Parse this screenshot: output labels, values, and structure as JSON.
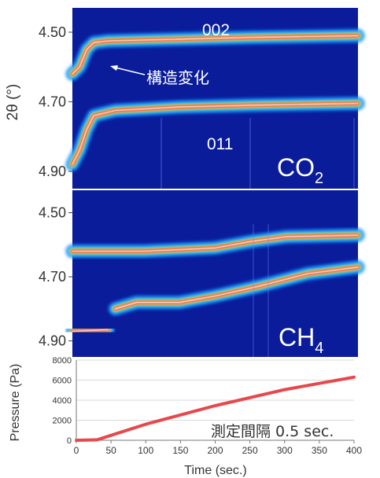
{
  "colors": {
    "panel_bg": "#0a1c9a",
    "trace": "#e8474b",
    "axis": "#444444",
    "grid": "#d9d9d9",
    "annotation": "#ffffff"
  },
  "chart_data": [
    {
      "type": "heatmap",
      "title": "",
      "ylabel": "2θ (°)",
      "y_ticks": [
        "4.50",
        "4.70",
        "4.90"
      ],
      "ylim": [
        4.95,
        4.43
      ],
      "xlim": [
        0,
        400
      ],
      "annotations": {
        "peak_upper": "002",
        "peak_lower": "011",
        "transition": "構造変化",
        "gas": "CO",
        "gas_sub": "2"
      },
      "bands": [
        {
          "name": "002",
          "points": [
            [
              0,
              4.62
            ],
            [
              10,
              4.6
            ],
            [
              20,
              4.55
            ],
            [
              30,
              4.53
            ],
            [
              50,
              4.525
            ],
            [
              150,
              4.52
            ],
            [
              250,
              4.515
            ],
            [
              400,
              4.51
            ]
          ]
        },
        {
          "name": "011",
          "points": [
            [
              0,
              4.88
            ],
            [
              10,
              4.84
            ],
            [
              20,
              4.78
            ],
            [
              30,
              4.74
            ],
            [
              60,
              4.725
            ],
            [
              150,
              4.715
            ],
            [
              250,
              4.71
            ],
            [
              400,
              4.705
            ]
          ]
        }
      ]
    },
    {
      "type": "heatmap",
      "title": "",
      "ylabel": "",
      "y_ticks": [
        "4.50",
        "4.70",
        "4.90"
      ],
      "ylim": [
        4.95,
        4.43
      ],
      "xlim": [
        0,
        400
      ],
      "annotations": {
        "gas": "CH",
        "gas_sub": "4"
      },
      "bands": [
        {
          "name": "upper",
          "points": [
            [
              0,
              4.62
            ],
            [
              100,
              4.62
            ],
            [
              200,
              4.61
            ],
            [
              250,
              4.59
            ],
            [
              300,
              4.575
            ],
            [
              400,
              4.57
            ]
          ]
        },
        {
          "name": "middle",
          "points": [
            [
              60,
              4.8
            ],
            [
              90,
              4.78
            ],
            [
              150,
              4.78
            ],
            [
              200,
              4.76
            ],
            [
              260,
              4.73
            ],
            [
              330,
              4.69
            ],
            [
              400,
              4.67
            ]
          ]
        },
        {
          "name": "lower",
          "points": [
            [
              0,
              4.87
            ],
            [
              50,
              4.865
            ]
          ]
        }
      ]
    },
    {
      "type": "line",
      "title": "",
      "xlabel": "Time (sec.)",
      "ylabel": "Pressure (Pa)",
      "xlim": [
        0,
        400
      ],
      "ylim": [
        0,
        8000
      ],
      "x_ticks": [
        "0",
        "50",
        "100",
        "150",
        "200",
        "250",
        "300",
        "350",
        "400"
      ],
      "y_ticks": [
        "0",
        "2000",
        "4000",
        "6000",
        "8000"
      ],
      "grid": true,
      "annotation": "測定間隔 0.5 sec.",
      "series": [
        {
          "x": [
            0,
            15,
            30,
            100,
            200,
            300,
            400
          ],
          "y": [
            0,
            20,
            50,
            1600,
            3450,
            5050,
            6300
          ]
        }
      ]
    }
  ]
}
